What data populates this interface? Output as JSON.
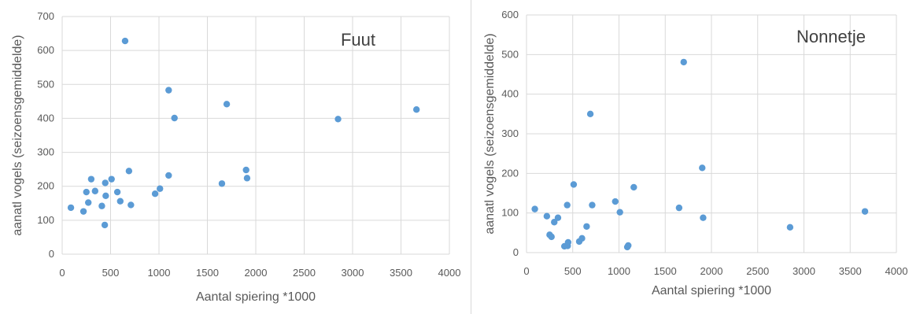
{
  "chart_data": [
    {
      "type": "scatter",
      "title": "Fuut",
      "xlabel": "Aantal spiering *1000",
      "ylabel": "aanatl vogels (seizoensgemiddelde)",
      "xlim": [
        0,
        4000
      ],
      "ylim": [
        0,
        700
      ],
      "xticks": [
        0,
        500,
        1000,
        1500,
        2000,
        2500,
        3000,
        3500,
        4000
      ],
      "yticks": [
        0,
        100,
        200,
        300,
        400,
        500,
        600,
        700
      ],
      "grid": true,
      "color": "#5b9bd5",
      "points": [
        {
          "x": 90,
          "y": 137
        },
        {
          "x": 220,
          "y": 126
        },
        {
          "x": 250,
          "y": 183
        },
        {
          "x": 270,
          "y": 152
        },
        {
          "x": 300,
          "y": 221
        },
        {
          "x": 340,
          "y": 186
        },
        {
          "x": 410,
          "y": 142
        },
        {
          "x": 440,
          "y": 86
        },
        {
          "x": 445,
          "y": 210
        },
        {
          "x": 450,
          "y": 172
        },
        {
          "x": 510,
          "y": 221
        },
        {
          "x": 570,
          "y": 183
        },
        {
          "x": 600,
          "y": 156
        },
        {
          "x": 650,
          "y": 628
        },
        {
          "x": 690,
          "y": 245
        },
        {
          "x": 710,
          "y": 145
        },
        {
          "x": 960,
          "y": 178
        },
        {
          "x": 1010,
          "y": 193
        },
        {
          "x": 1100,
          "y": 483
        },
        {
          "x": 1100,
          "y": 232
        },
        {
          "x": 1160,
          "y": 401
        },
        {
          "x": 1650,
          "y": 208
        },
        {
          "x": 1700,
          "y": 442
        },
        {
          "x": 1900,
          "y": 248
        },
        {
          "x": 1910,
          "y": 224
        },
        {
          "x": 2850,
          "y": 398
        },
        {
          "x": 3660,
          "y": 426
        }
      ]
    },
    {
      "type": "scatter",
      "title": "Nonnetje",
      "xlabel": "Aantal spiering *1000",
      "ylabel": "aanatl vogels (seizoensgemiddelde)",
      "xlim": [
        0,
        4000
      ],
      "ylim": [
        0,
        600
      ],
      "xticks": [
        0,
        500,
        1000,
        1500,
        2000,
        2500,
        3000,
        3500,
        4000
      ],
      "yticks": [
        0,
        100,
        200,
        300,
        400,
        500,
        600
      ],
      "grid": true,
      "color": "#5b9bd5",
      "points": [
        {
          "x": 90,
          "y": 110
        },
        {
          "x": 220,
          "y": 92
        },
        {
          "x": 250,
          "y": 45
        },
        {
          "x": 270,
          "y": 40
        },
        {
          "x": 300,
          "y": 77
        },
        {
          "x": 340,
          "y": 88
        },
        {
          "x": 410,
          "y": 16
        },
        {
          "x": 440,
          "y": 120
        },
        {
          "x": 445,
          "y": 17
        },
        {
          "x": 450,
          "y": 26
        },
        {
          "x": 510,
          "y": 172
        },
        {
          "x": 570,
          "y": 28
        },
        {
          "x": 600,
          "y": 36
        },
        {
          "x": 650,
          "y": 66
        },
        {
          "x": 690,
          "y": 350
        },
        {
          "x": 710,
          "y": 120
        },
        {
          "x": 960,
          "y": 129
        },
        {
          "x": 1010,
          "y": 102
        },
        {
          "x": 1090,
          "y": 14
        },
        {
          "x": 1100,
          "y": 18
        },
        {
          "x": 1160,
          "y": 165
        },
        {
          "x": 1650,
          "y": 113
        },
        {
          "x": 1700,
          "y": 481
        },
        {
          "x": 1900,
          "y": 214
        },
        {
          "x": 1910,
          "y": 88
        },
        {
          "x": 2850,
          "y": 64
        },
        {
          "x": 3660,
          "y": 104
        }
      ]
    }
  ]
}
